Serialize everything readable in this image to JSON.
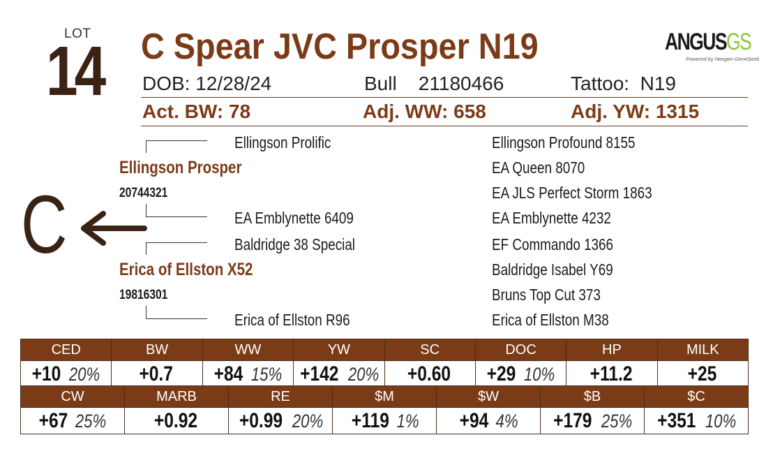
{
  "lot": {
    "label": "LOT",
    "number": "14"
  },
  "title": "C Spear JVC Prosper N19",
  "logo": {
    "main": "ANGUS",
    "accent": "GS",
    "sub": "Powered by Neogen GeneSeek"
  },
  "info": {
    "dob": "DOB: 12/28/24",
    "bull": "Bull    21180466",
    "tattoo": "Tattoo:  N19"
  },
  "performance": {
    "bw": "Act. BW: 78",
    "ww": "Adj. WW: 658",
    "yw": "Adj. YW: 1315"
  },
  "pedigree": {
    "sire": {
      "name": "Ellingson Prosper",
      "reg": "20744321"
    },
    "sire_sire": "Ellingson Prolific",
    "sire_dam": "EA Emblynette 6409",
    "dam": {
      "name": "Erica of Ellston X52",
      "reg": "19816301"
    },
    "dam_sire": "Baldridge 38 Special",
    "dam_dam": "Erica of Ellston R96",
    "great_grandparents": [
      "Ellingson Profound 8155",
      "EA Queen 8070",
      "EA JLS Perfect Storm 1863",
      "EA Emblynette 4232",
      "EF Commando 1366",
      "Baldridge Isabel Y69",
      "Bruns Top Cut 373",
      "Erica of Ellston M38"
    ]
  },
  "owner_mark": "C",
  "epd_row1": [
    {
      "label": "CED",
      "value": "+10",
      "pct": "20%"
    },
    {
      "label": "BW",
      "value": "+0.7",
      "pct": ""
    },
    {
      "label": "WW",
      "value": "+84",
      "pct": "15%"
    },
    {
      "label": "YW",
      "value": "+142",
      "pct": "20%"
    },
    {
      "label": "SC",
      "value": "+0.60",
      "pct": ""
    },
    {
      "label": "DOC",
      "value": "+29",
      "pct": "10%"
    },
    {
      "label": "HP",
      "value": "+11.2",
      "pct": ""
    },
    {
      "label": "MILK",
      "value": "+25",
      "pct": ""
    }
  ],
  "epd_row2": [
    {
      "label": "CW",
      "value": "+67",
      "pct": "25%"
    },
    {
      "label": "MARB",
      "value": "+0.92",
      "pct": ""
    },
    {
      "label": "RE",
      "value": "+0.99",
      "pct": "20%"
    },
    {
      "label": "$M",
      "value": "+119",
      "pct": "1%"
    },
    {
      "label": "$W",
      "value": "+94",
      "pct": "4%"
    },
    {
      "label": "$B",
      "value": "+179",
      "pct": "25%"
    },
    {
      "label": "$C",
      "value": "+351",
      "pct": "10%"
    }
  ],
  "colors": {
    "brand_brown": "#7b3b17",
    "dark_brown": "#3a2314",
    "logo_green": "#8cc63f"
  }
}
